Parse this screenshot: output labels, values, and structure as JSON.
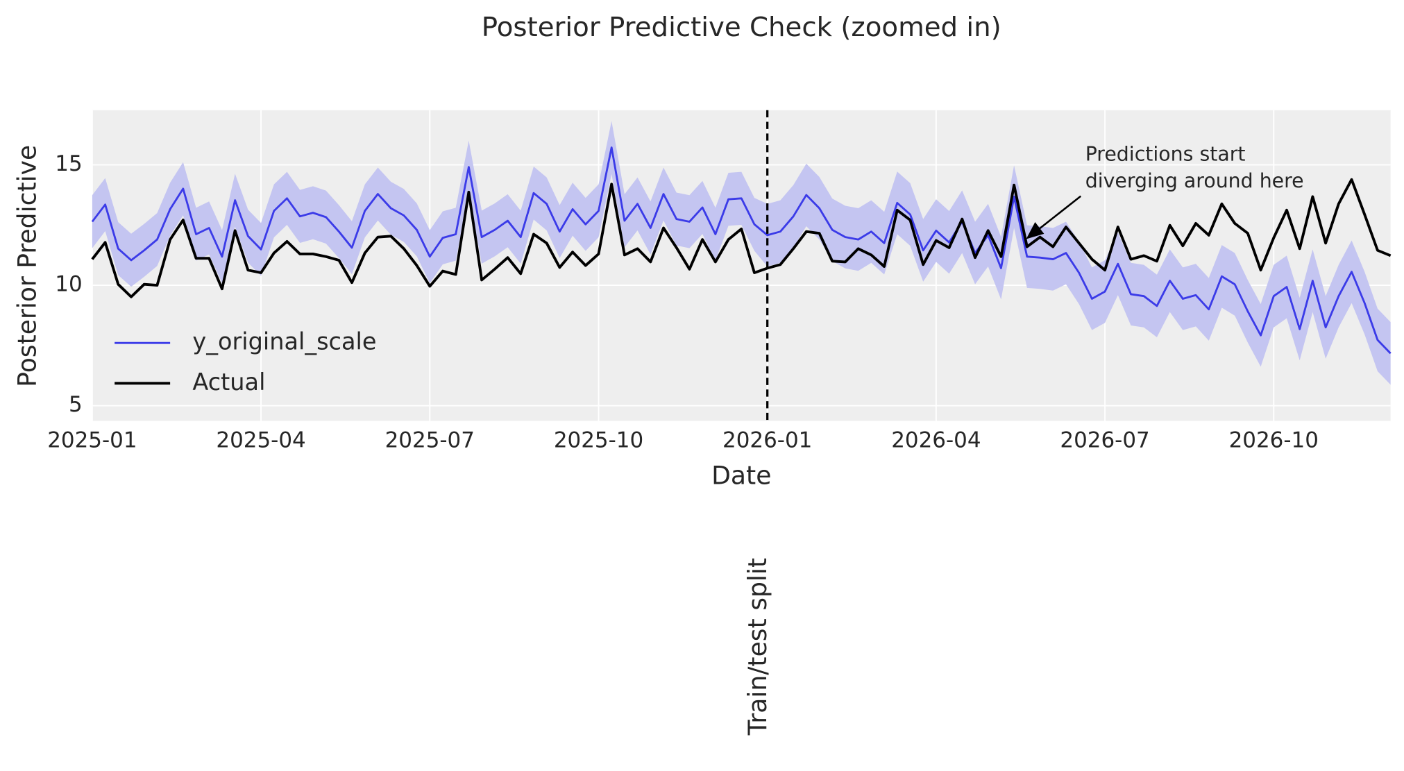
{
  "chart_data": {
    "type": "line",
    "title": "Posterior Predictive Check (zoomed in)",
    "xlabel": "Date",
    "ylabel": "Posterior Predictive",
    "categories": [
      "2025-01",
      null,
      null,
      null,
      null,
      null,
      null,
      null,
      null,
      null,
      null,
      null,
      null,
      "2025-04",
      null,
      null,
      null,
      null,
      null,
      null,
      null,
      null,
      null,
      null,
      null,
      null,
      "2025-07",
      null,
      null,
      null,
      null,
      null,
      null,
      null,
      null,
      null,
      null,
      null,
      null,
      "2025-10",
      null,
      null,
      null,
      null,
      null,
      null,
      null,
      null,
      null,
      null,
      null,
      null,
      "2026-01",
      null,
      null,
      null,
      null,
      null,
      null,
      null,
      null,
      null,
      null,
      null,
      null,
      "2026-04",
      null,
      null,
      null,
      null,
      null,
      null,
      null,
      null,
      null,
      null,
      null,
      null,
      "2026-07",
      null,
      null,
      null,
      null,
      null,
      null,
      null,
      null,
      null,
      null,
      null,
      null,
      "2026-10",
      null,
      null,
      null,
      null,
      null,
      null,
      null,
      null,
      null
    ],
    "ylim": [
      4.37,
      17.27
    ],
    "yticks": [
      5,
      10,
      15
    ],
    "grid": true,
    "legend": "lower left",
    "band": {
      "color": "#c4c5f1",
      "lower": [
        11.54,
        12.25,
        10.42,
        9.94,
        10.35,
        10.8,
        12.06,
        12.91,
        11.02,
        11.28,
        10.09,
        12.43,
        10.94,
        10.39,
        11.99,
        12.51,
        11.76,
        11.91,
        11.73,
        11.13,
        10.46,
        11.99,
        12.69,
        12.1,
        11.8,
        11.2,
        10.09,
        10.87,
        11.02,
        13.81,
        10.9,
        11.2,
        11.58,
        10.9,
        12.73,
        12.28,
        11.13,
        12.06,
        11.43,
        11.99,
        14.62,
        11.58,
        12.28,
        11.28,
        12.69,
        11.65,
        11.54,
        12.13,
        11.02,
        12.47,
        12.51,
        11.43,
        10.78,
        10.93,
        11.56,
        12.45,
        11.9,
        11.0,
        10.7,
        10.6,
        10.93,
        10.45,
        12.12,
        11.64,
        10.15,
        10.97,
        10.48,
        11.34,
        10.04,
        10.78,
        9.41,
        12.38,
        9.89,
        9.85,
        9.78,
        10.04,
        9.22,
        8.14,
        8.44,
        9.59,
        8.33,
        8.25,
        7.84,
        8.89,
        8.14,
        8.29,
        7.7,
        9.07,
        8.74,
        7.62,
        6.62,
        8.25,
        8.63,
        6.88,
        8.89,
        6.95,
        8.25,
        9.26,
        7.96,
        6.43,
        5.87
      ],
      "upper": [
        13.74,
        14.45,
        12.62,
        12.14,
        12.55,
        13.0,
        14.26,
        15.11,
        13.22,
        13.48,
        12.29,
        14.63,
        13.14,
        12.59,
        14.19,
        14.71,
        13.96,
        14.11,
        13.93,
        13.33,
        12.66,
        14.19,
        14.89,
        14.3,
        14.0,
        13.4,
        12.29,
        13.07,
        13.22,
        16.01,
        13.1,
        13.4,
        13.78,
        13.1,
        14.93,
        14.48,
        13.33,
        14.26,
        13.63,
        14.19,
        16.82,
        13.78,
        14.48,
        13.48,
        14.89,
        13.85,
        13.74,
        14.33,
        13.22,
        14.67,
        14.71,
        13.63,
        13.38,
        13.53,
        14.16,
        15.05,
        14.5,
        13.6,
        13.3,
        13.2,
        13.53,
        13.05,
        14.72,
        14.24,
        12.75,
        13.57,
        13.08,
        13.94,
        12.64,
        13.38,
        12.01,
        14.98,
        12.49,
        12.45,
        12.38,
        12.64,
        11.82,
        10.74,
        11.04,
        12.19,
        10.93,
        10.85,
        10.44,
        11.49,
        10.74,
        10.89,
        10.3,
        11.67,
        11.34,
        10.22,
        9.22,
        10.85,
        11.23,
        9.48,
        11.49,
        9.55,
        10.85,
        11.86,
        10.56,
        9.03,
        8.47
      ]
    },
    "series": [
      {
        "name": "y_original_scale",
        "color": "#3b3be8",
        "values": [
          12.64,
          13.35,
          11.52,
          11.04,
          11.45,
          11.9,
          13.16,
          14.01,
          12.12,
          12.38,
          11.19,
          13.53,
          12.04,
          11.49,
          13.09,
          13.61,
          12.86,
          13.01,
          12.83,
          12.23,
          11.56,
          13.09,
          13.79,
          13.2,
          12.9,
          12.3,
          11.19,
          11.97,
          12.12,
          14.91,
          12.0,
          12.3,
          12.68,
          12.0,
          13.83,
          13.38,
          12.23,
          13.16,
          12.53,
          13.09,
          15.72,
          12.68,
          13.38,
          12.38,
          13.79,
          12.75,
          12.64,
          13.23,
          12.12,
          13.57,
          13.61,
          12.53,
          12.08,
          12.23,
          12.86,
          13.75,
          13.2,
          12.3,
          12.0,
          11.9,
          12.23,
          11.75,
          13.42,
          12.94,
          11.45,
          12.27,
          11.78,
          12.64,
          11.34,
          12.08,
          10.71,
          13.68,
          11.19,
          11.15,
          11.08,
          11.34,
          10.52,
          9.44,
          9.74,
          10.89,
          9.63,
          9.55,
          9.14,
          10.19,
          9.44,
          9.59,
          9.0,
          10.37,
          10.04,
          8.92,
          7.92,
          9.55,
          9.93,
          8.18,
          10.19,
          8.25,
          9.55,
          10.56,
          9.26,
          7.73,
          7.17
        ]
      },
      {
        "name": "Actual",
        "color": "#000000",
        "values": [
          11.08,
          11.78,
          10.04,
          9.52,
          10.04,
          10.0,
          11.9,
          12.71,
          11.12,
          11.12,
          9.85,
          12.27,
          10.63,
          10.52,
          11.34,
          11.82,
          11.3,
          11.3,
          11.19,
          11.04,
          10.11,
          11.34,
          12.0,
          12.04,
          11.52,
          10.82,
          9.96,
          10.59,
          10.45,
          13.87,
          10.22,
          10.67,
          11.15,
          10.48,
          12.12,
          11.75,
          10.74,
          11.38,
          10.82,
          11.3,
          14.2,
          11.26,
          11.52,
          10.97,
          12.38,
          11.56,
          10.67,
          11.9,
          10.97,
          11.9,
          12.34,
          10.52,
          10.71,
          10.86,
          11.52,
          12.23,
          12.16,
          11.0,
          10.97,
          11.52,
          11.26,
          10.78,
          13.12,
          12.71,
          10.86,
          11.86,
          11.56,
          12.75,
          11.15,
          12.27,
          11.19,
          14.16,
          11.6,
          12.0,
          11.6,
          12.42,
          11.75,
          11.08,
          10.63,
          12.42,
          11.08,
          11.23,
          11.0,
          12.49,
          11.64,
          12.57,
          12.08,
          13.38,
          12.57,
          12.16,
          10.63,
          11.97,
          13.12,
          11.52,
          13.68,
          11.75,
          13.38,
          14.39,
          12.94,
          11.45,
          11.23
        ]
      }
    ],
    "vline": {
      "x": "2026-01",
      "label": "Train/test split"
    },
    "annotation": [
      "Predictions start",
      "diverging around here"
    ]
  }
}
